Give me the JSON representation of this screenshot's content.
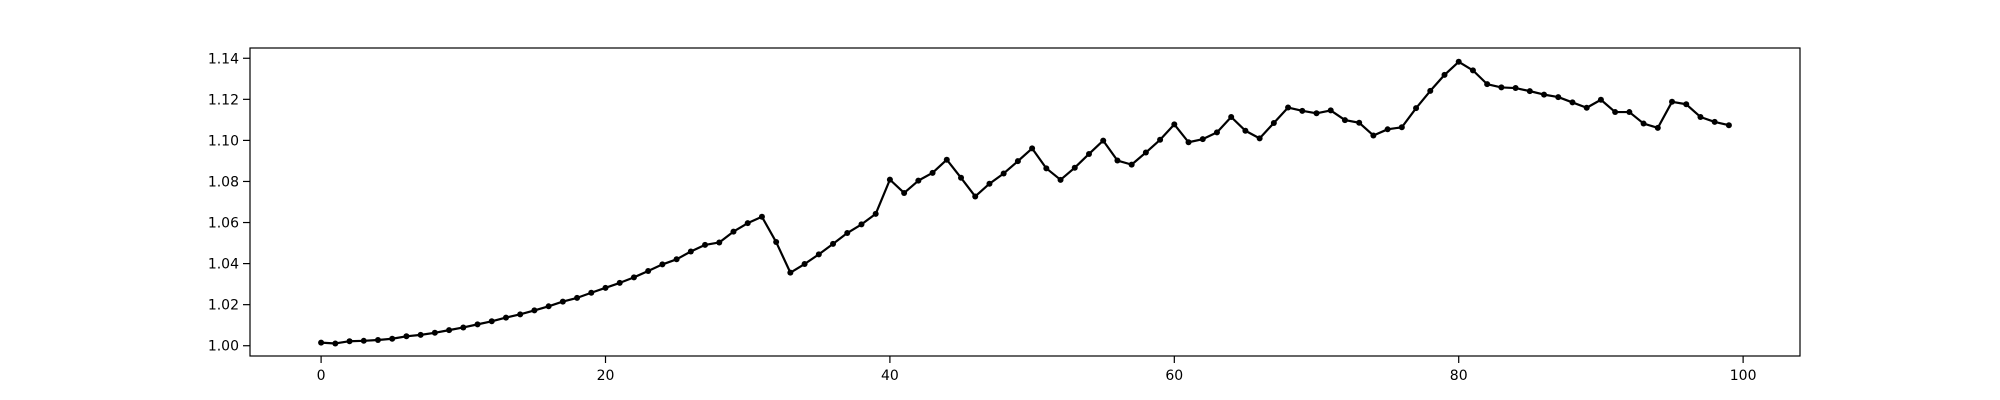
{
  "chart_data": {
    "type": "line",
    "title": "",
    "xlabel": "",
    "ylabel": "",
    "xlim": [
      -5,
      104
    ],
    "ylim": [
      0.995,
      1.145
    ],
    "grid": false,
    "legend": "none",
    "x_ticks": [
      0,
      20,
      40,
      60,
      80,
      100
    ],
    "y_ticks": [
      1.0,
      1.02,
      1.04,
      1.06,
      1.08,
      1.1,
      1.12,
      1.14
    ],
    "x_tick_labels": [
      "0",
      "20",
      "40",
      "60",
      "80",
      "100"
    ],
    "y_tick_labels": [
      "1.00",
      "1.02",
      "1.04",
      "1.06",
      "1.08",
      "1.10",
      "1.12",
      "1.14"
    ],
    "line_color": "#000000",
    "marker": "circle",
    "series": [
      {
        "x": [
          0,
          1,
          2,
          3,
          4,
          5,
          6,
          7,
          8,
          9,
          10,
          11,
          12,
          13,
          14,
          15,
          16,
          17,
          18,
          19,
          20,
          21,
          22,
          23,
          24,
          25,
          26,
          27,
          28,
          29,
          30,
          31,
          32,
          33,
          34,
          35,
          36,
          37,
          38,
          39,
          40,
          41,
          42,
          43,
          44,
          45,
          46,
          47,
          48,
          49,
          50,
          51,
          52,
          53,
          54,
          55,
          56,
          57,
          58,
          59,
          60,
          61,
          62,
          63,
          64,
          65,
          66,
          67,
          68,
          69,
          70,
          71,
          72,
          73,
          74,
          75,
          76,
          77,
          78,
          79,
          80,
          81,
          82,
          83,
          84,
          85,
          86,
          87,
          88,
          89,
          90,
          91,
          92,
          93,
          94,
          95,
          96,
          97,
          98,
          99
        ],
        "values": [
          1.0015,
          1.0011,
          1.0022,
          1.0024,
          1.0028,
          1.0034,
          1.0046,
          1.0053,
          1.0063,
          1.0076,
          1.0089,
          1.0104,
          1.0119,
          1.0137,
          1.0153,
          1.0172,
          1.0192,
          1.0215,
          1.0233,
          1.0258,
          1.0282,
          1.0306,
          1.0333,
          1.0364,
          1.0396,
          1.0421,
          1.0459,
          1.0491,
          1.0503,
          1.0556,
          1.0597,
          1.0628,
          1.0505,
          1.0356,
          1.0398,
          1.0445,
          1.0496,
          1.0549,
          1.0591,
          1.0642,
          1.0809,
          1.0744,
          1.0804,
          1.0842,
          1.0906,
          1.0818,
          1.0727,
          1.0789,
          1.0839,
          1.0899,
          1.0961,
          1.0864,
          1.0808,
          1.0867,
          1.0934,
          1.0999,
          1.0902,
          1.0882,
          1.0941,
          1.1003,
          1.1078,
          1.0991,
          1.1006,
          1.1039,
          1.1114,
          1.1047,
          1.101,
          1.1085,
          1.116,
          1.1144,
          1.1132,
          1.1146,
          1.1099,
          1.1086,
          1.1024,
          1.1054,
          1.1064,
          1.1157,
          1.1241,
          1.1319,
          1.1383,
          1.1341,
          1.1274,
          1.1258,
          1.1255,
          1.124,
          1.1223,
          1.1211,
          1.1185,
          1.1159,
          1.1198,
          1.1138,
          1.1138,
          1.1082,
          1.1061,
          1.1188,
          1.1176,
          1.1114,
          1.109,
          1.1074
        ]
      }
    ]
  }
}
